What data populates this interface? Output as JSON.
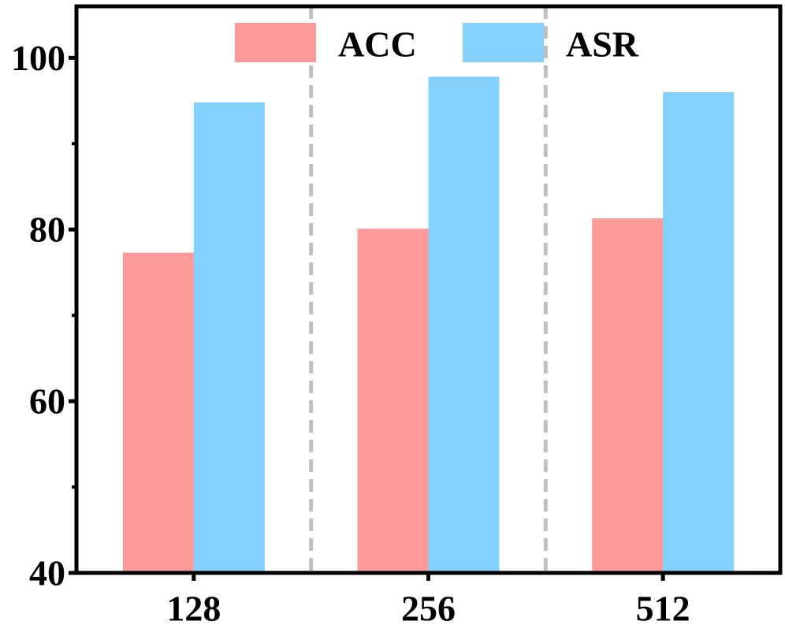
{
  "chart_data": {
    "type": "bar",
    "categories": [
      "128",
      "256",
      "512"
    ],
    "series": [
      {
        "name": "ACC",
        "values": [
          77.3,
          80.1,
          81.3
        ],
        "color": "#fd9a9a"
      },
      {
        "name": "ASR",
        "values": [
          94.8,
          97.8,
          96.0
        ],
        "color": "#84d0fe"
      }
    ],
    "xlabel": "",
    "ylabel": "",
    "ylim": [
      40,
      106
    ],
    "yticks": [
      40,
      60,
      80,
      100
    ],
    "ytick_labels": [
      "40",
      "60",
      "80",
      "100"
    ],
    "minor_yticks": [
      50,
      70,
      90
    ],
    "grid": false,
    "category_separators": "dashed gray",
    "separator_color": "#bfbfbf",
    "legend": {
      "placement": "top-center",
      "entries": [
        "ACC",
        "ASR"
      ]
    }
  }
}
